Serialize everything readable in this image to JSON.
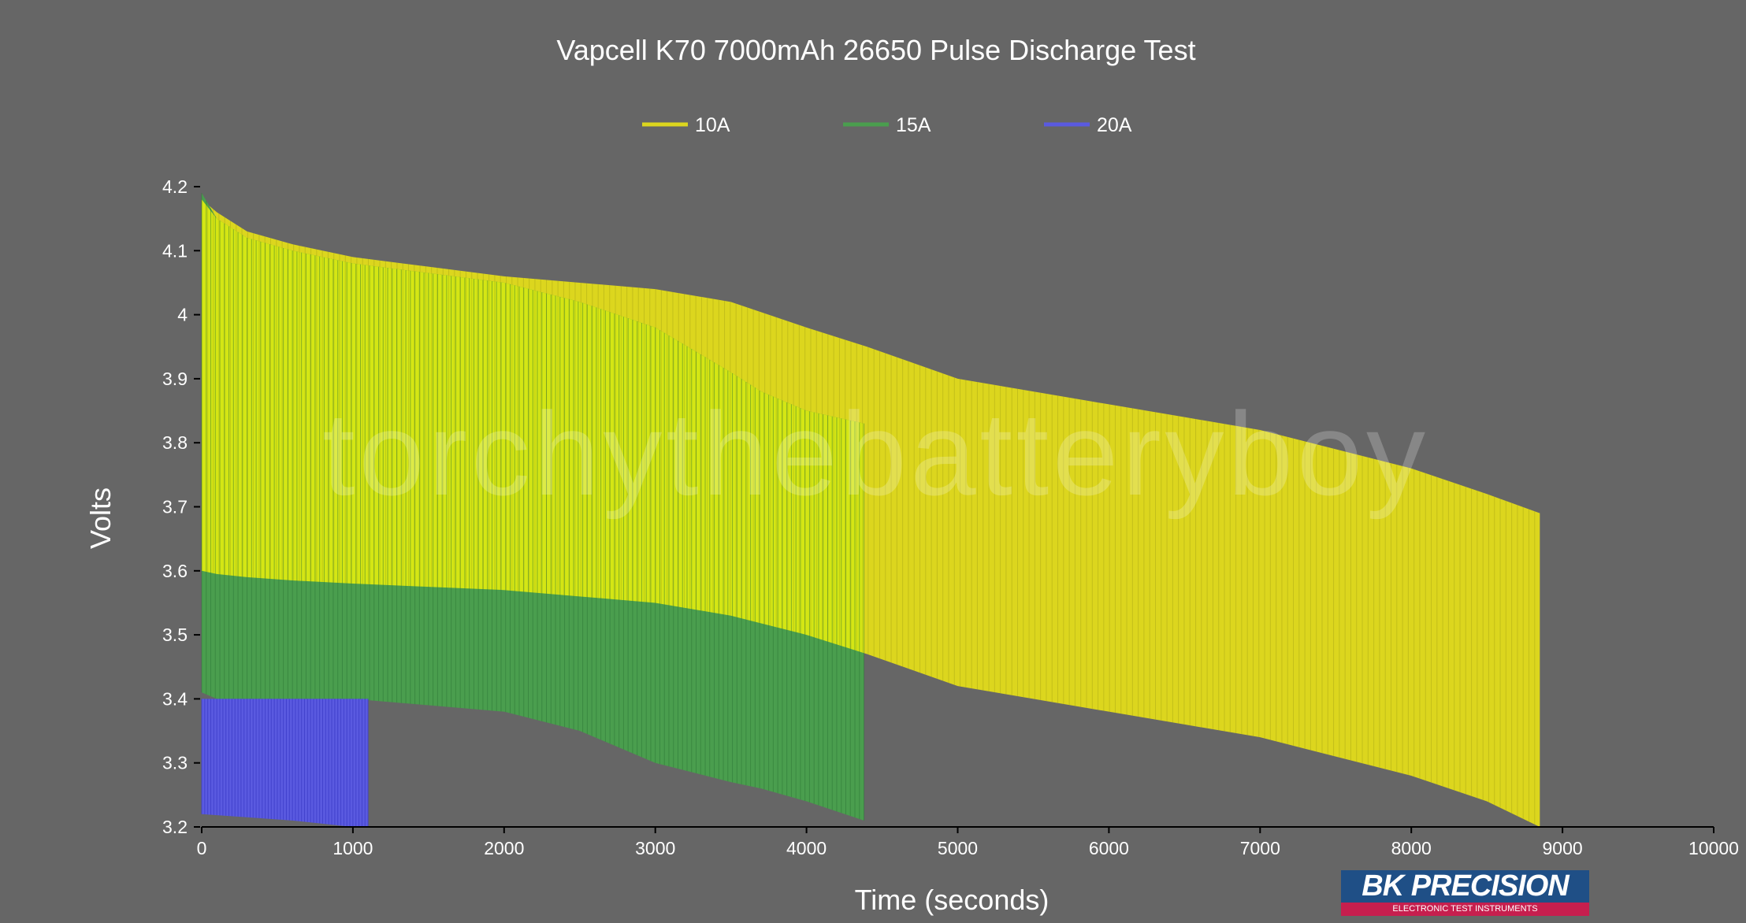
{
  "chart_data": {
    "type": "line",
    "title": "Vapcell K70 7000mAh 26650 Pulse Discharge Test",
    "xlabel": "Time (seconds)",
    "ylabel": "Volts",
    "xlim": [
      0,
      10000
    ],
    "ylim": [
      3.2,
      4.2
    ],
    "xticks": [
      "0",
      "1000",
      "2000",
      "3000",
      "4000",
      "5000",
      "6000",
      "7000",
      "8000",
      "9000",
      "10000"
    ],
    "yticks": [
      "3.2",
      "3.3",
      "3.4",
      "3.5",
      "3.6",
      "3.7",
      "3.8",
      "3.9",
      "4",
      "4.1",
      "4.2"
    ],
    "legend_position": "top-center",
    "grid": false,
    "watermark": "torchythebatteryboy",
    "series": [
      {
        "name": "10A",
        "color": "#dcd61e",
        "x": [
          0,
          100,
          300,
          600,
          1000,
          1500,
          2000,
          2500,
          3000,
          3500,
          4000,
          4400,
          5000,
          5500,
          6000,
          6500,
          7000,
          7500,
          8000,
          8500,
          8850
        ],
        "rest": [
          4.18,
          4.16,
          4.13,
          4.11,
          4.09,
          4.075,
          4.06,
          4.05,
          4.04,
          4.02,
          3.98,
          3.95,
          3.9,
          3.88,
          3.86,
          3.84,
          3.82,
          3.79,
          3.76,
          3.72,
          3.69
        ],
        "load": [
          3.6,
          3.595,
          3.59,
          3.585,
          3.58,
          3.575,
          3.57,
          3.56,
          3.55,
          3.53,
          3.5,
          3.47,
          3.42,
          3.4,
          3.38,
          3.36,
          3.34,
          3.31,
          3.28,
          3.24,
          3.2
        ]
      },
      {
        "name": "15A",
        "color": "#4a9e4e",
        "x": [
          0,
          100,
          300,
          600,
          1000,
          1500,
          2000,
          2500,
          3000,
          3500,
          3700,
          4000,
          4380
        ],
        "rest": [
          4.19,
          4.15,
          4.12,
          4.1,
          4.08,
          4.065,
          4.05,
          4.02,
          3.98,
          3.91,
          3.88,
          3.85,
          3.83
        ],
        "load": [
          3.41,
          3.4,
          3.4,
          3.4,
          3.4,
          3.39,
          3.38,
          3.35,
          3.3,
          3.27,
          3.26,
          3.24,
          3.21
        ]
      },
      {
        "name": "20A",
        "color": "#5a5ae0",
        "x": [
          0,
          300,
          600,
          1000,
          1100
        ],
        "rest": [
          3.4,
          3.4,
          3.4,
          3.4,
          3.4
        ],
        "load": [
          3.22,
          3.215,
          3.21,
          3.2,
          3.2
        ]
      }
    ]
  },
  "logo": {
    "name": "BK PRECISION",
    "tagline": "ELECTRONIC TEST INSTRUMENTS"
  }
}
